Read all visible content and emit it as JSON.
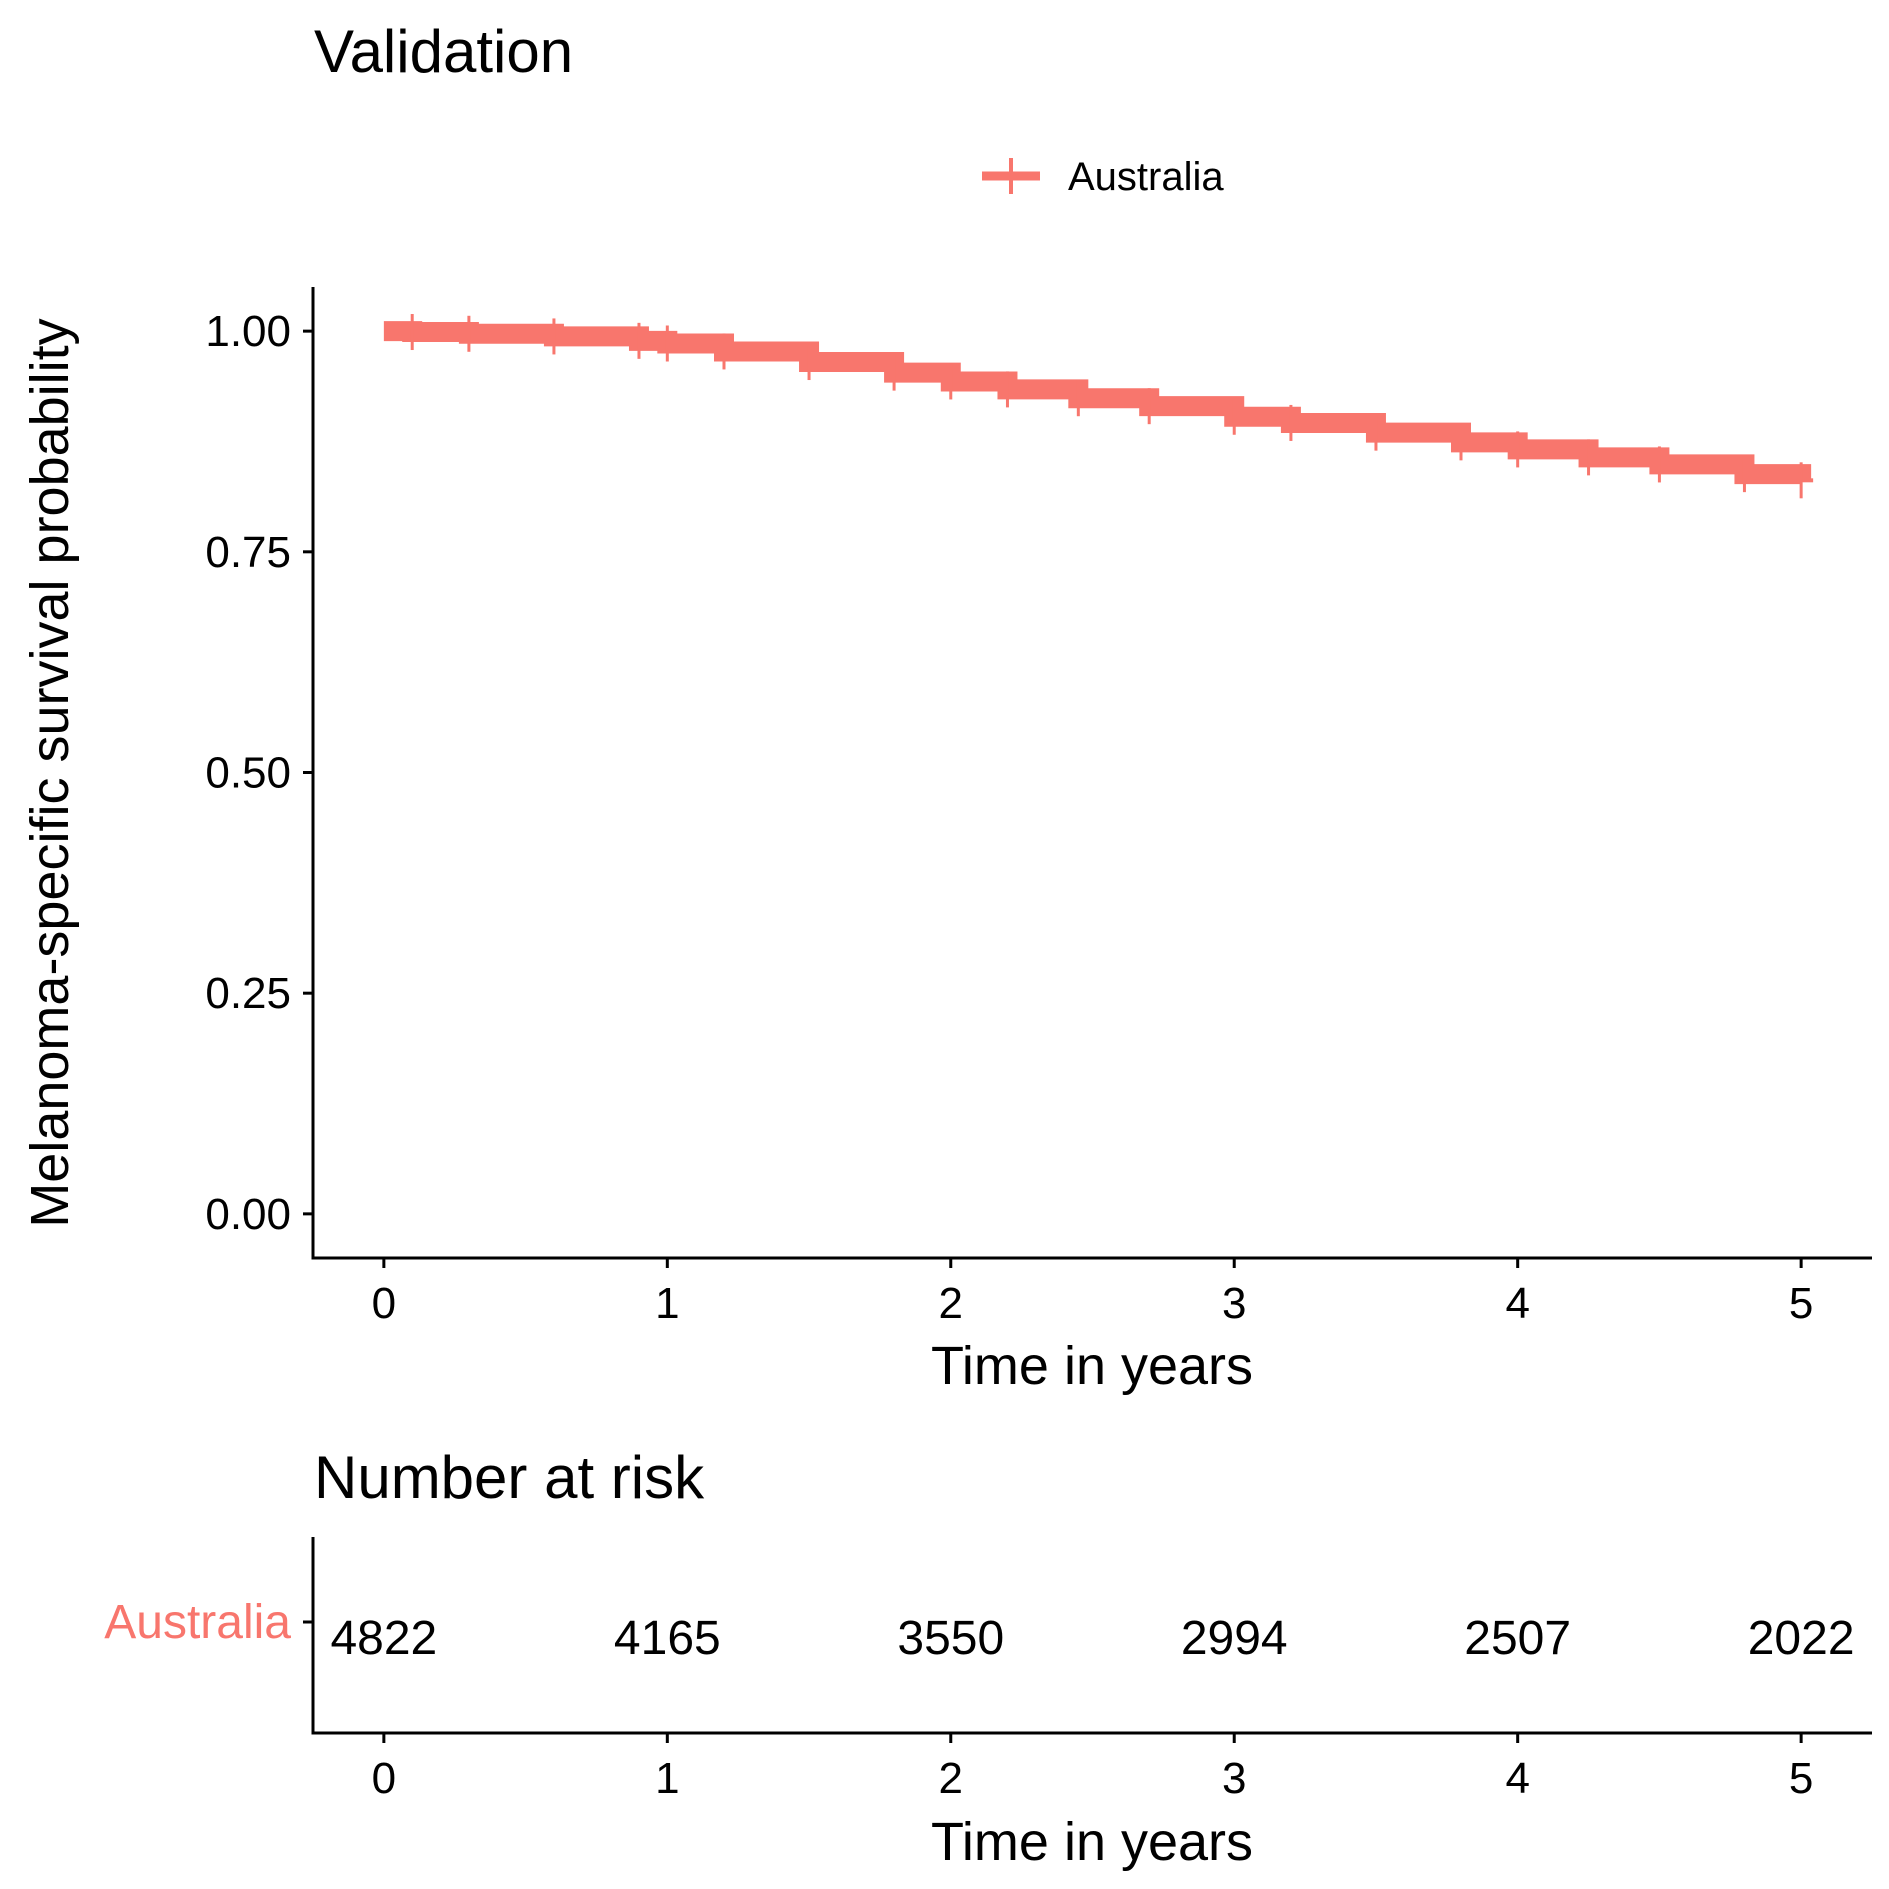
{
  "chart_data": [
    {
      "type": "line",
      "title": "Validation",
      "xlabel": "Time in years",
      "ylabel": "Melanoma-specific survival probability",
      "xlim": [
        -0.25,
        5.25
      ],
      "ylim": [
        -0.05,
        1.05
      ],
      "x_ticks": [
        "0",
        "1",
        "2",
        "3",
        "4",
        "5"
      ],
      "y_ticks": [
        "0.00",
        "0.25",
        "0.50",
        "0.75",
        "1.00"
      ],
      "grid": false,
      "legend_position": "top",
      "series": [
        {
          "name": "Australia",
          "color": "#F8766D",
          "censor_marks": true,
          "x": [
            0,
            0.1,
            0.3,
            0.6,
            0.9,
            1.0,
            1.2,
            1.5,
            1.8,
            2.0,
            2.2,
            2.45,
            2.7,
            3.0,
            3.2,
            3.5,
            3.8,
            4.0,
            4.25,
            4.5,
            4.8,
            5.0
          ],
          "y": [
            1.0,
            0.999,
            0.997,
            0.994,
            0.989,
            0.986,
            0.977,
            0.965,
            0.953,
            0.943,
            0.934,
            0.924,
            0.915,
            0.903,
            0.896,
            0.885,
            0.874,
            0.866,
            0.857,
            0.849,
            0.838,
            0.831
          ]
        }
      ]
    },
    {
      "type": "table",
      "title": "Number at risk",
      "xlabel": "Time in years",
      "x_ticks": [
        "0",
        "1",
        "2",
        "3",
        "4",
        "5"
      ],
      "rows": [
        {
          "name": "Australia",
          "color": "#F8766D",
          "x": [
            0,
            1,
            2,
            3,
            4,
            5
          ],
          "values": [
            "4822",
            "4165",
            "3550",
            "2994",
            "2507",
            "2022"
          ]
        }
      ]
    }
  ]
}
